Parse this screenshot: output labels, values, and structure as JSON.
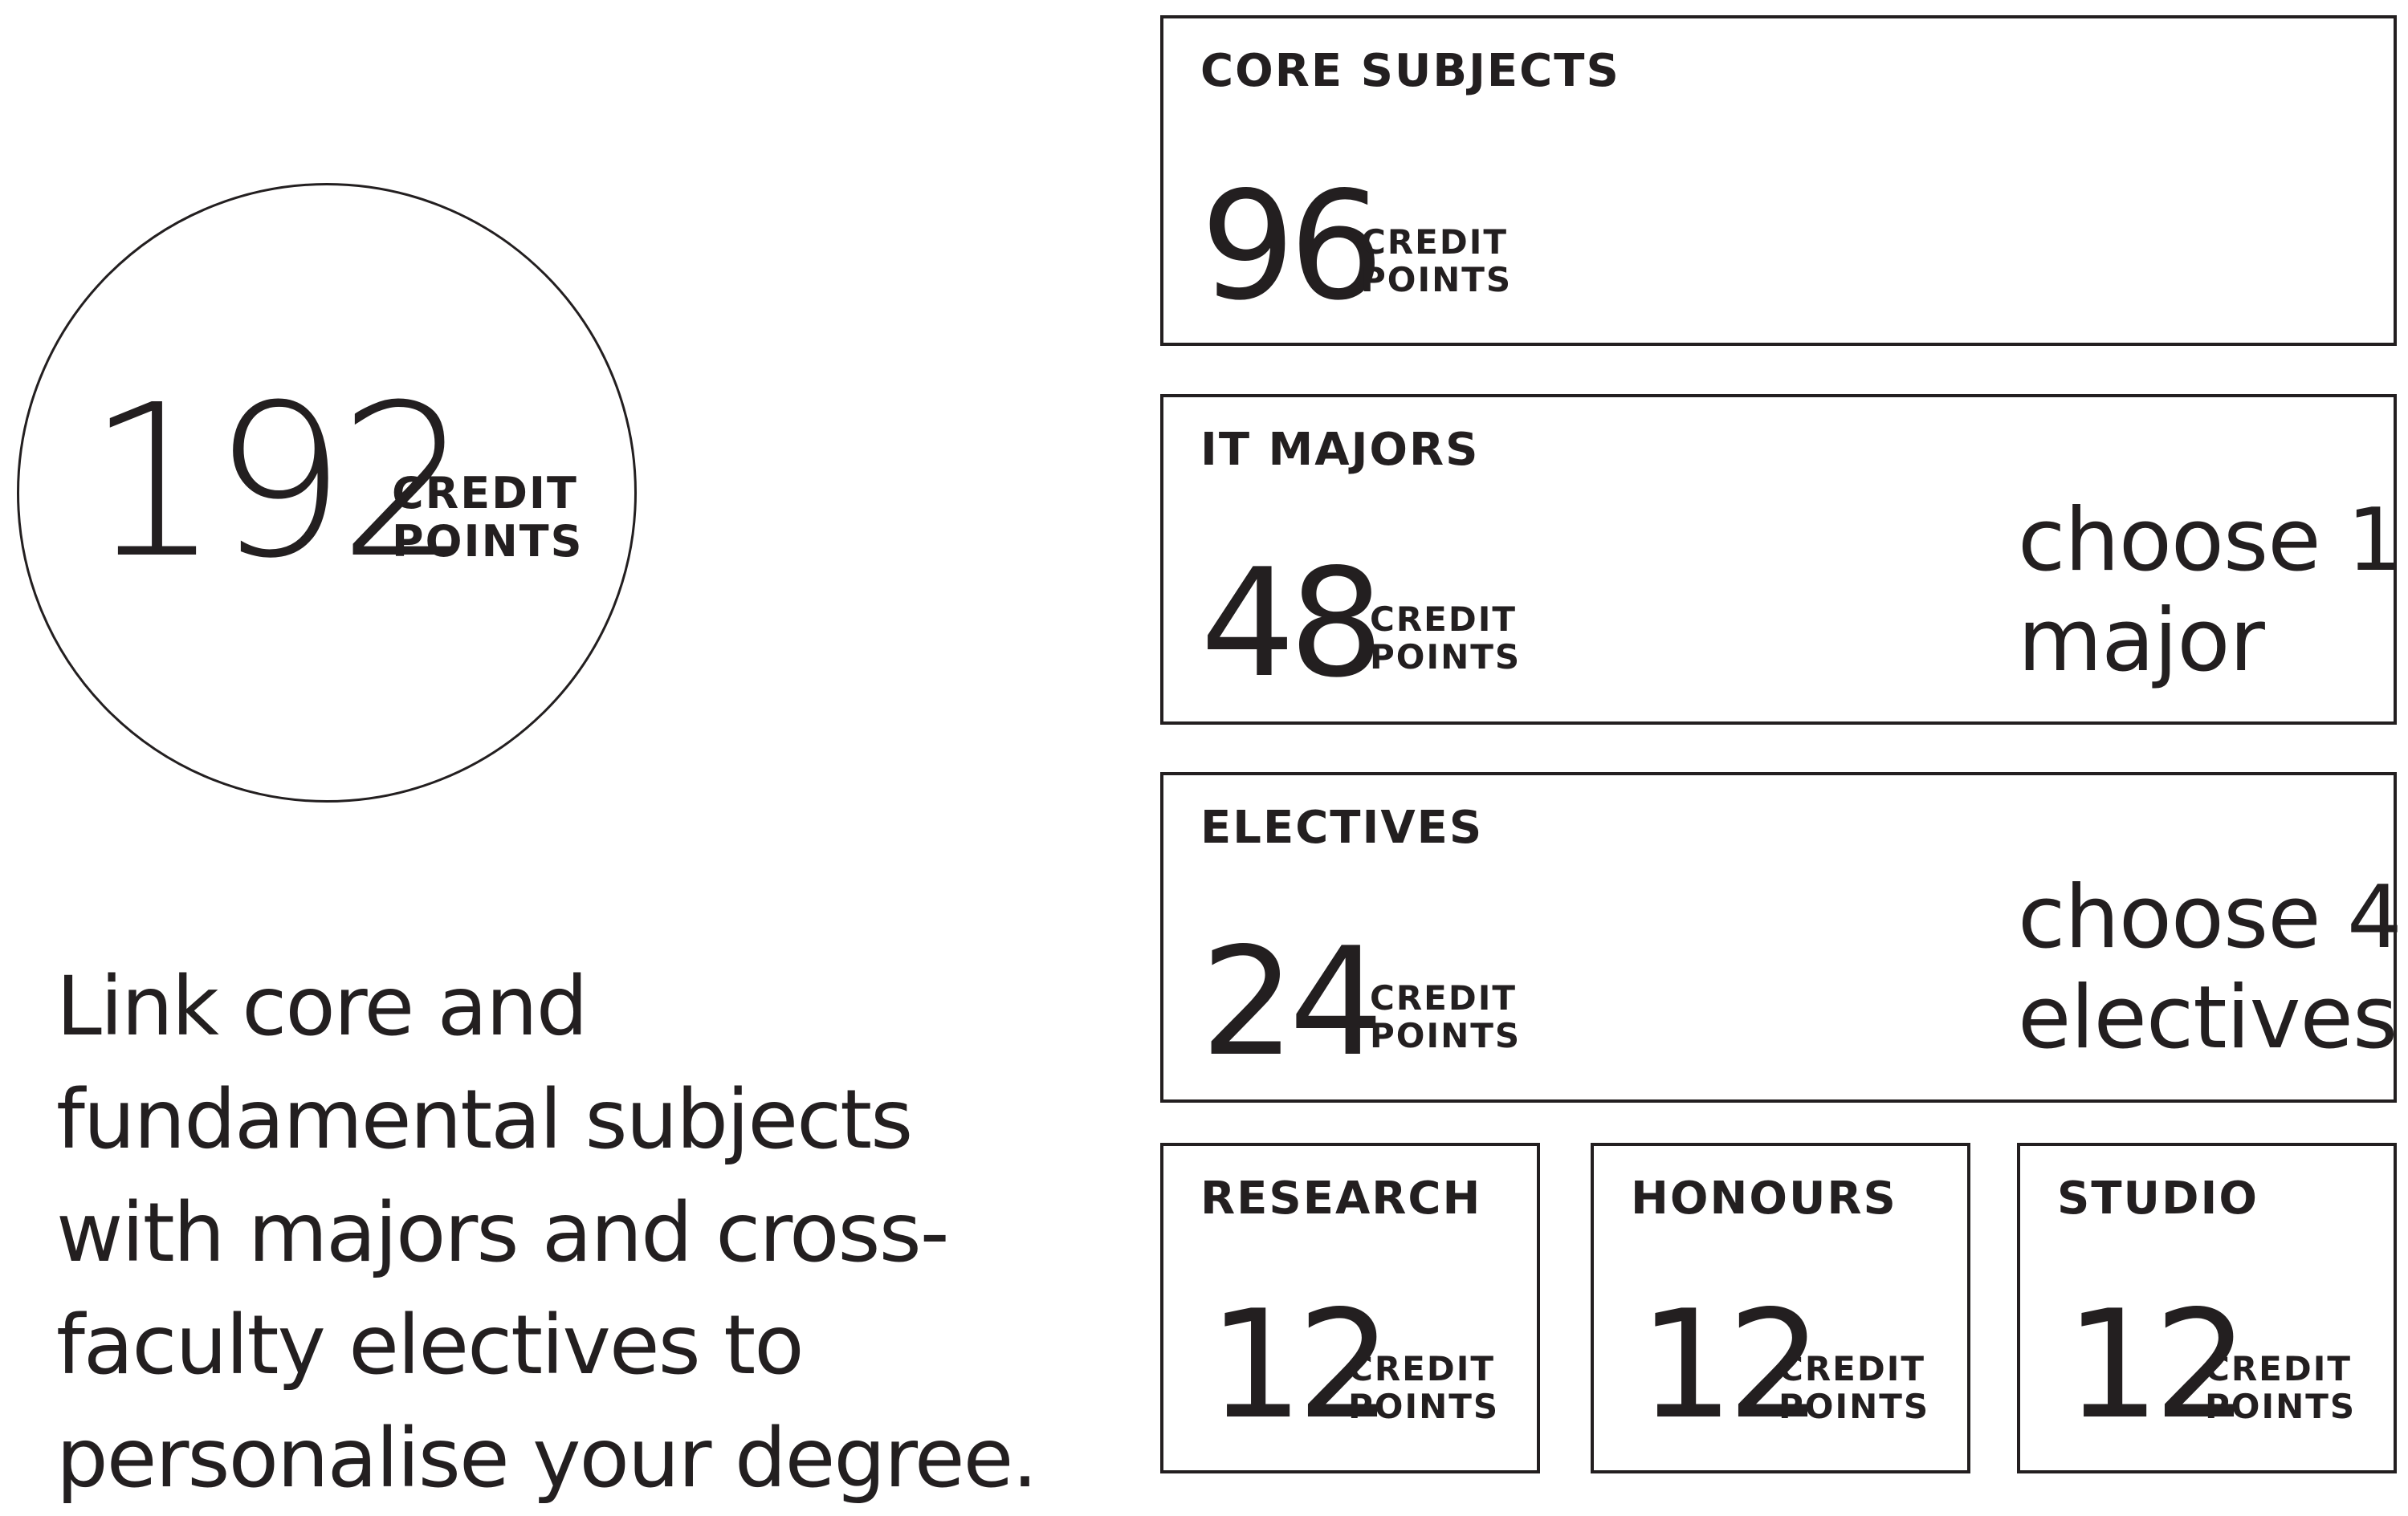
{
  "total": {
    "value": "192",
    "unit_line1": "CREDIT",
    "unit_line2": "POINTS"
  },
  "tagline": "Link core and fundamental subjects with majors and cross-faculty electives to personalise your degree.",
  "components": [
    {
      "title": "CORE SUBJECTS",
      "value": "96",
      "unit_line1": "CREDIT",
      "unit_line2": "POINTS",
      "choice_line1": "",
      "choice_line2": ""
    },
    {
      "title": "IT MAJORS",
      "value": "48",
      "unit_line1": "CREDIT",
      "unit_line2": "POINTS",
      "choice_line1": "choose 1",
      "choice_line2": "major"
    },
    {
      "title": "ELECTIVES",
      "value": "24",
      "unit_line1": "CREDIT",
      "unit_line2": "POINTS",
      "choice_line1": "choose 4",
      "choice_line2": "electives"
    },
    {
      "title": "RESEARCH",
      "value": "12",
      "unit_line1": "CREDIT",
      "unit_line2": "POINTS"
    },
    {
      "title": "HONOURS",
      "value": "12",
      "unit_line1": "CREDIT",
      "unit_line2": "POINTS"
    },
    {
      "title": "STUDIO",
      "value": "12",
      "unit_line1": "CREDIT",
      "unit_line2": "POINTS"
    }
  ],
  "colors": {
    "ink": "#231f20",
    "background": "#ffffff"
  }
}
